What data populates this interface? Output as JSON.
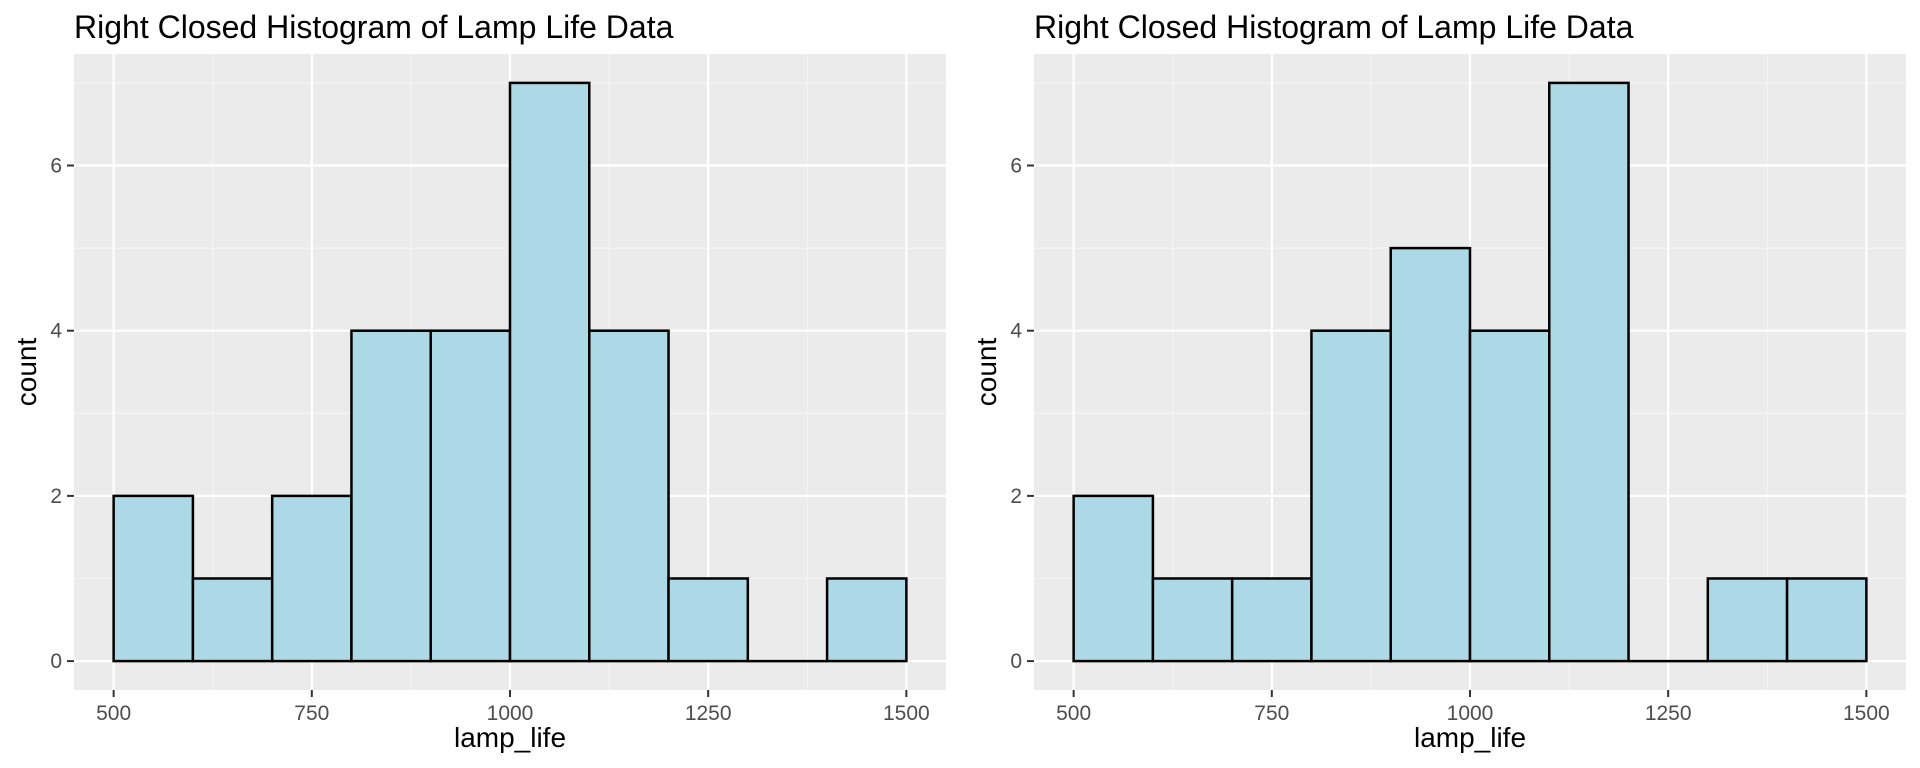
{
  "colors": {
    "panel_background": "#EBEBEB",
    "grid_major": "#FFFFFF",
    "grid_minor": "#F5F5F5",
    "bar_fill": "#ADD8E6",
    "bar_outline": "#000000",
    "tick": "#333333"
  },
  "chart_data": [
    {
      "type": "bar",
      "title": "Right Closed Histogram of Lamp Life Data",
      "xlabel": "lamp_life",
      "ylabel": "count",
      "xlim": [
        450,
        1550
      ],
      "ylim": [
        -0.35,
        7.35
      ],
      "x_ticks": [
        500,
        750,
        1000,
        1250,
        1500
      ],
      "x_tick_labels": [
        "500",
        "750",
        "1000",
        "1250",
        "1500"
      ],
      "y_ticks": [
        0,
        2,
        4,
        6
      ],
      "y_tick_labels": [
        "0",
        "2",
        "4",
        "6"
      ],
      "grid": true,
      "bins": [
        {
          "x0": 500,
          "x1": 600,
          "count": 2
        },
        {
          "x0": 600,
          "x1": 700,
          "count": 1
        },
        {
          "x0": 700,
          "x1": 800,
          "count": 2
        },
        {
          "x0": 800,
          "x1": 900,
          "count": 4
        },
        {
          "x0": 900,
          "x1": 1000,
          "count": 4
        },
        {
          "x0": 1000,
          "x1": 1100,
          "count": 7
        },
        {
          "x0": 1100,
          "x1": 1200,
          "count": 4
        },
        {
          "x0": 1200,
          "x1": 1300,
          "count": 1
        },
        {
          "x0": 1300,
          "x1": 1400,
          "count": 0
        },
        {
          "x0": 1400,
          "x1": 1500,
          "count": 1
        }
      ]
    },
    {
      "type": "bar",
      "title": "Right Closed Histogram of Lamp Life Data",
      "xlabel": "lamp_life",
      "ylabel": "count",
      "xlim": [
        450,
        1550
      ],
      "ylim": [
        -0.35,
        7.35
      ],
      "x_ticks": [
        500,
        750,
        1000,
        1250,
        1500
      ],
      "x_tick_labels": [
        "500",
        "750",
        "1000",
        "1250",
        "1500"
      ],
      "y_ticks": [
        0,
        2,
        4,
        6
      ],
      "y_tick_labels": [
        "0",
        "2",
        "4",
        "6"
      ],
      "grid": true,
      "bins": [
        {
          "x0": 500,
          "x1": 600,
          "count": 2
        },
        {
          "x0": 600,
          "x1": 700,
          "count": 1
        },
        {
          "x0": 700,
          "x1": 800,
          "count": 1
        },
        {
          "x0": 800,
          "x1": 900,
          "count": 4
        },
        {
          "x0": 900,
          "x1": 1000,
          "count": 5
        },
        {
          "x0": 1000,
          "x1": 1100,
          "count": 4
        },
        {
          "x0": 1100,
          "x1": 1200,
          "count": 7
        },
        {
          "x0": 1200,
          "x1": 1300,
          "count": 0
        },
        {
          "x0": 1300,
          "x1": 1400,
          "count": 1
        },
        {
          "x0": 1400,
          "x1": 1500,
          "count": 1
        }
      ]
    }
  ]
}
